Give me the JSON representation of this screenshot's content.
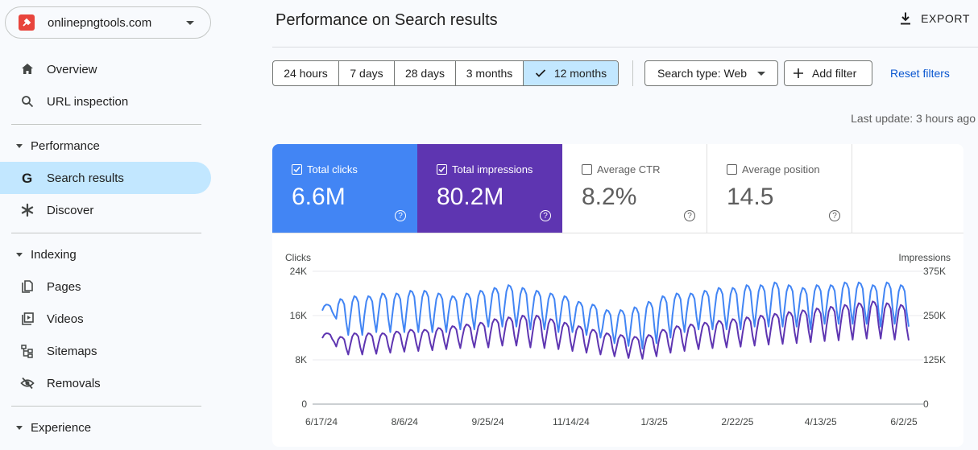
{
  "property": {
    "name": "onlinepngtools.com"
  },
  "nav": {
    "overview": "Overview",
    "url_inspection": "URL inspection",
    "performance_section": "Performance",
    "search_results": "Search results",
    "discover": "Discover",
    "indexing_section": "Indexing",
    "pages": "Pages",
    "videos": "Videos",
    "sitemaps": "Sitemaps",
    "removals": "Removals",
    "experience_section": "Experience"
  },
  "header": {
    "title": "Performance on Search results",
    "export": "EXPORT"
  },
  "filters": {
    "ranges": [
      "24 hours",
      "7 days",
      "28 days",
      "3 months",
      "12 months"
    ],
    "selected_range": "12 months",
    "search_type": "Search type: Web",
    "add_filter": "Add filter",
    "reset": "Reset filters",
    "last_update": "Last update: 3 hours ago"
  },
  "metrics": {
    "clicks": {
      "label": "Total clicks",
      "value": "6.6M",
      "checked": true
    },
    "impressions": {
      "label": "Total impressions",
      "value": "80.2M",
      "checked": true
    },
    "ctr": {
      "label": "Average CTR",
      "value": "8.2%",
      "checked": false
    },
    "position": {
      "label": "Average position",
      "value": "14.5",
      "checked": false
    }
  },
  "colors": {
    "clicks": "#4285f4",
    "impressions": "#5e35b1",
    "accent": "#0b57d0",
    "selected": "#c2e7ff"
  },
  "chart_data": {
    "type": "line",
    "left_axis_label": "Clicks",
    "right_axis_label": "Impressions",
    "left_ticks": [
      "0",
      "8K",
      "16K",
      "24K"
    ],
    "right_ticks": [
      "0",
      "125K",
      "250K",
      "375K"
    ],
    "left_ylim": [
      0,
      24000
    ],
    "right_ylim": [
      0,
      375000
    ],
    "x_ticks": [
      "6/17/24",
      "8/6/24",
      "9/25/24",
      "11/14/24",
      "1/3/25",
      "2/22/25",
      "4/13/25",
      "6/2/25"
    ],
    "series": [
      {
        "name": "Clicks",
        "axis": "left",
        "color": "#4285f4",
        "pattern": "weekly",
        "weekly_high": [
          18000,
          19000,
          19500,
          19500,
          20000,
          20000,
          20500,
          20500,
          20000,
          19500,
          20000,
          20500,
          21000,
          21500,
          21000,
          20500,
          20000,
          19500,
          18500,
          18000,
          17000,
          17000,
          17500,
          18500,
          19500,
          20000,
          20000,
          20500,
          21000,
          21000,
          21500,
          21500,
          22000,
          21500,
          21000,
          21500,
          21500,
          22000,
          22000,
          21500,
          22000,
          21500
        ],
        "weekly_low": [
          16000,
          12500,
          12500,
          13000,
          13000,
          13000,
          13000,
          13000,
          13000,
          13500,
          13500,
          14000,
          14000,
          14000,
          13500,
          13500,
          13000,
          13000,
          12500,
          12000,
          11000,
          10500,
          10000,
          11000,
          12000,
          13000,
          13500,
          13500,
          13500,
          13500,
          14000,
          14000,
          14000,
          14000,
          13500,
          14500,
          14500,
          14500,
          14500,
          14000,
          14500,
          14000
        ]
      },
      {
        "name": "Impressions",
        "axis": "right",
        "color": "#5e35b1",
        "pattern": "weekly",
        "weekly_high": [
          200000,
          190000,
          200000,
          200000,
          200000,
          205000,
          210000,
          210000,
          215000,
          220000,
          225000,
          230000,
          240000,
          245000,
          250000,
          250000,
          240000,
          230000,
          220000,
          210000,
          200000,
          195000,
          190000,
          195000,
          210000,
          220000,
          225000,
          230000,
          235000,
          240000,
          245000,
          250000,
          255000,
          260000,
          265000,
          270000,
          275000,
          280000,
          285000,
          290000,
          285000,
          280000
        ],
        "weekly_low": [
          175000,
          140000,
          140000,
          142000,
          145000,
          148000,
          150000,
          152000,
          155000,
          158000,
          160000,
          160000,
          165000,
          165000,
          160000,
          158000,
          155000,
          150000,
          145000,
          140000,
          135000,
          130000,
          128000,
          135000,
          145000,
          150000,
          155000,
          158000,
          160000,
          162000,
          165000,
          168000,
          170000,
          172000,
          175000,
          178000,
          180000,
          182000,
          185000,
          185000,
          182000,
          180000
        ]
      }
    ]
  }
}
